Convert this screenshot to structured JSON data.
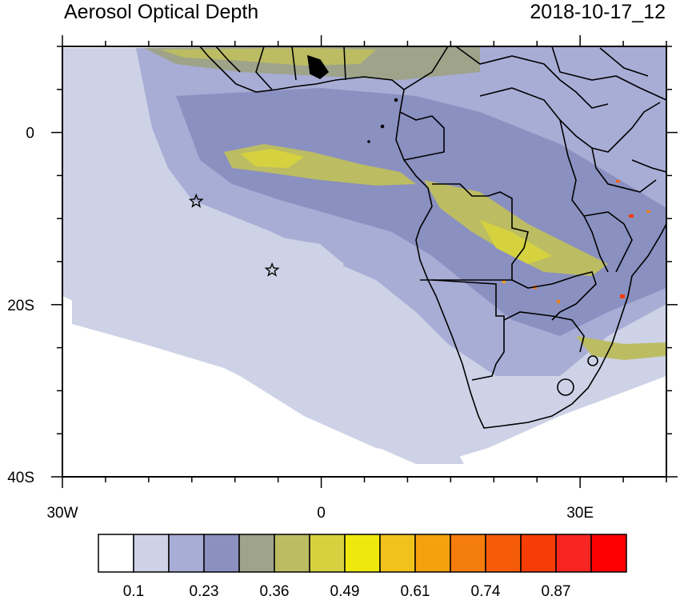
{
  "title": "Aerosol Optical Depth",
  "timestamp": "2018-10-17_12",
  "axes": {
    "x_ticks": [
      {
        "lon": -30,
        "label": "30W"
      },
      {
        "lon": 0,
        "label": "0"
      },
      {
        "lon": 30,
        "label": "30E"
      }
    ],
    "y_ticks": [
      {
        "lat": 0,
        "label": "0"
      },
      {
        "lat": -20,
        "label": "20S"
      },
      {
        "lat": -40,
        "label": "40S"
      }
    ],
    "lon_range": [
      -30,
      40
    ],
    "lat_range": [
      -40,
      10
    ]
  },
  "colorbar": {
    "colors": [
      "#ffffff",
      "#cdd2e6",
      "#a8add6",
      "#8a90c0",
      "#9ea38a",
      "#bcbc63",
      "#d6d23f",
      "#efe80f",
      "#f2c21c",
      "#f4a10e",
      "#f57d0c",
      "#f65c08",
      "#f53d05",
      "#f72521",
      "#fc0000"
    ],
    "labels": [
      "0.1",
      "0.23",
      "0.36",
      "0.49",
      "0.61",
      "0.74",
      "0.87"
    ]
  },
  "markers": [
    {
      "symbol": "star",
      "lon": -14.5,
      "lat": -8
    },
    {
      "symbol": "star",
      "lon": -5.7,
      "lat": -16
    }
  ],
  "colors": {
    "land_outline": "#000000",
    "low_aod": "#cdd2e6",
    "mid_aod": "#8a90c0",
    "high_aod": "#d6d23f"
  }
}
